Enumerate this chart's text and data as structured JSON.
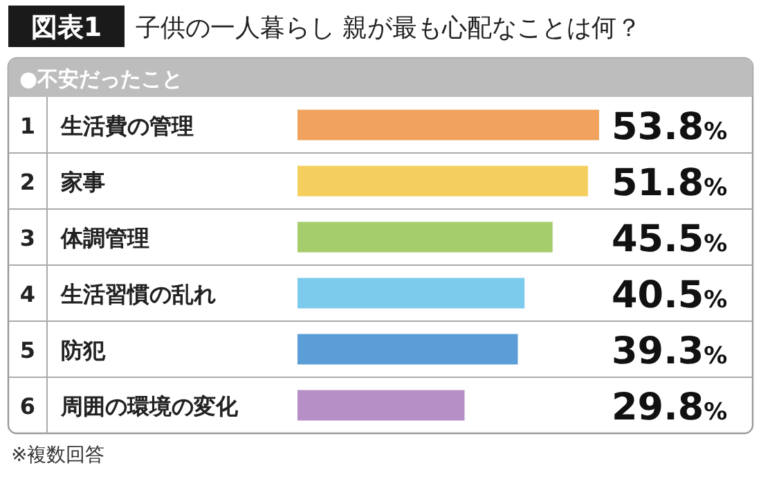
{
  "chart_data": {
    "type": "bar",
    "orientation": "horizontal",
    "title": "子供の一人暮らし 親が最も心配なことは何？",
    "subtitle": "●不安だったこと",
    "categories": [
      "生活費の管理",
      "家事",
      "体調管理",
      "生活習慣の乱れ",
      "防犯",
      "周囲の環境の変化"
    ],
    "values": [
      53.8,
      51.8,
      45.5,
      40.5,
      39.3,
      29.8
    ],
    "colors": [
      "#f0a25e",
      "#f4cf5e",
      "#a5cd6c",
      "#7ccbec",
      "#5b9dd6",
      "#b68fc6"
    ],
    "value_labels": [
      "53.8%",
      "51.8%",
      "45.5%",
      "40.5%",
      "39.3%",
      "29.8%"
    ],
    "annotations": [
      "図表1",
      "1",
      "2",
      "3",
      "4",
      "5",
      "6",
      "※複数回答"
    ]
  }
}
